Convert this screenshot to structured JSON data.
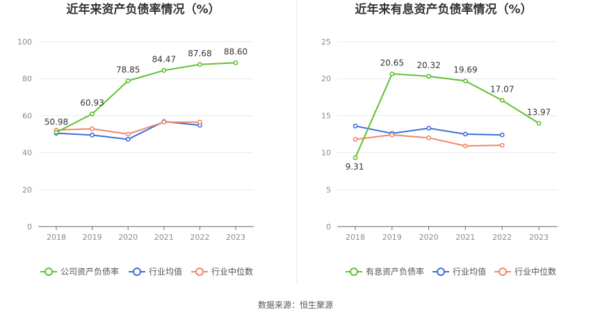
{
  "chart_data": [
    {
      "type": "line",
      "title": "近年来资产负债率情况（%）",
      "categories": [
        "2018",
        "2019",
        "2020",
        "2021",
        "2022",
        "2023"
      ],
      "ylim": [
        0,
        100
      ],
      "yticks": [
        0,
        20,
        40,
        60,
        80,
        100
      ],
      "grid": true,
      "legend_position": "bottom",
      "series": [
        {
          "name": "公司资产负债率",
          "color": "#5ec12f",
          "values": [
            50.98,
            60.93,
            78.85,
            84.47,
            87.68,
            88.6
          ],
          "labeled": true
        },
        {
          "name": "行业均值",
          "color": "#3a6fd8",
          "values": [
            50.5,
            49.5,
            47.2,
            56.8,
            54.8,
            null
          ],
          "labeled": false
        },
        {
          "name": "行业中位数",
          "color": "#f0866a",
          "values": [
            52.2,
            52.9,
            50.0,
            56.5,
            56.5,
            null
          ],
          "labeled": false
        }
      ]
    },
    {
      "type": "line",
      "title": "近年来有息资产负债率情况（%）",
      "categories": [
        "2018",
        "2019",
        "2020",
        "2021",
        "2022",
        "2023"
      ],
      "ylim": [
        0,
        25
      ],
      "yticks": [
        0,
        5,
        10,
        15,
        20,
        25
      ],
      "grid": true,
      "legend_position": "bottom",
      "series": [
        {
          "name": "有息资产负债率",
          "color": "#5ec12f",
          "values": [
            9.31,
            20.65,
            20.32,
            19.69,
            17.07,
            13.97
          ],
          "labeled": true
        },
        {
          "name": "行业均值",
          "color": "#3a6fd8",
          "values": [
            13.6,
            12.6,
            13.3,
            12.5,
            12.4,
            null
          ],
          "labeled": false
        },
        {
          "name": "行业中位数",
          "color": "#f0866a",
          "values": [
            11.8,
            12.4,
            12.0,
            10.9,
            11.0,
            null
          ],
          "labeled": false
        }
      ]
    }
  ],
  "footer": {
    "source": "数据来源：恒生聚源"
  }
}
